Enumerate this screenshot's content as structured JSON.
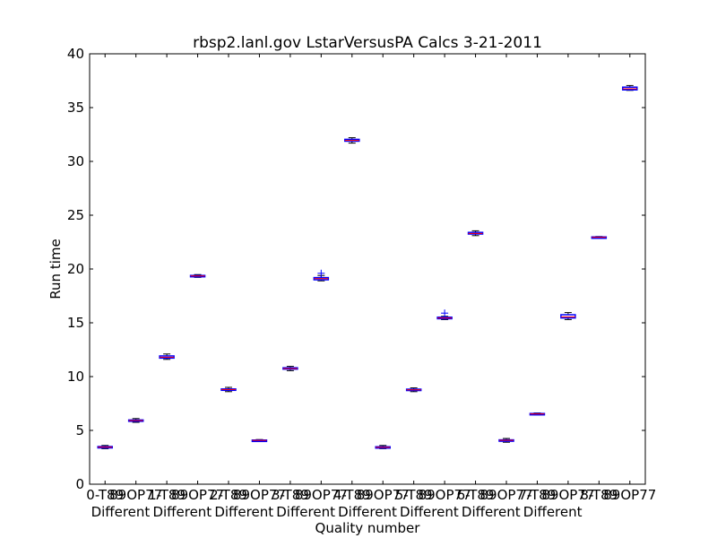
{
  "chart_data": {
    "type": "box",
    "title": "rbsp2.lanl.gov LstarVersusPA Calcs 3-21-2011",
    "xlabel": "Quality number",
    "ylabel": "Run time",
    "ylim": [
      0,
      40
    ],
    "yticks": [
      0,
      5,
      10,
      15,
      20,
      25,
      30,
      35,
      40
    ],
    "grid": false,
    "legend": "none",
    "box_color": "#0000ff",
    "median_color": "#ff0000",
    "whisker_color": "#000000",
    "flier_color": "#0000ff",
    "tick_labels": [
      "0-T89",
      "89OP77",
      "1-T89",
      "89OP77",
      "2-T89",
      "89OP77",
      "3-T89",
      "89OP77",
      "4-T89",
      "89OP77",
      "5-T89",
      "89OP77",
      "6-T89",
      "89OP77",
      "7-T89",
      "89OP77",
      "8-T89",
      "89OP77"
    ],
    "group_labels": [
      "Different",
      "Different",
      "Different",
      "Different",
      "Different",
      "Different",
      "Different",
      "Different"
    ],
    "boxes": [
      {
        "q1": 3.42,
        "median": 3.45,
        "q3": 3.5,
        "wlo": 3.3,
        "whi": 3.6,
        "fliers": []
      },
      {
        "q1": 5.88,
        "median": 5.92,
        "q3": 5.97,
        "wlo": 5.75,
        "whi": 6.1,
        "fliers": []
      },
      {
        "q1": 11.72,
        "median": 11.8,
        "q3": 11.92,
        "wlo": 11.6,
        "whi": 12.1,
        "fliers": []
      },
      {
        "q1": 19.3,
        "median": 19.35,
        "q3": 19.4,
        "wlo": 19.22,
        "whi": 19.48,
        "fliers": []
      },
      {
        "q1": 8.75,
        "median": 8.8,
        "q3": 8.85,
        "wlo": 8.6,
        "whi": 9.0,
        "fliers": []
      },
      {
        "q1": 4.05,
        "median": 4.07,
        "q3": 4.1,
        "wlo": 4.0,
        "whi": 4.15,
        "fliers": []
      },
      {
        "q1": 10.7,
        "median": 10.75,
        "q3": 10.82,
        "wlo": 10.55,
        "whi": 10.95,
        "fliers": []
      },
      {
        "q1": 19.0,
        "median": 19.1,
        "q3": 19.2,
        "wlo": 18.9,
        "whi": 19.4,
        "fliers": [
          19.6
        ]
      },
      {
        "q1": 31.88,
        "median": 31.95,
        "q3": 32.05,
        "wlo": 31.7,
        "whi": 32.2,
        "fliers": []
      },
      {
        "q1": 3.4,
        "median": 3.43,
        "q3": 3.48,
        "wlo": 3.3,
        "whi": 3.6,
        "fliers": []
      },
      {
        "q1": 8.72,
        "median": 8.77,
        "q3": 8.83,
        "wlo": 8.6,
        "whi": 8.95,
        "fliers": []
      },
      {
        "q1": 15.38,
        "median": 15.45,
        "q3": 15.52,
        "wlo": 15.3,
        "whi": 15.6,
        "fliers": [
          15.9
        ]
      },
      {
        "q1": 23.25,
        "median": 23.3,
        "q3": 23.4,
        "wlo": 23.1,
        "whi": 23.55,
        "fliers": []
      },
      {
        "q1": 4.05,
        "median": 4.08,
        "q3": 4.12,
        "wlo": 3.9,
        "whi": 4.25,
        "fliers": []
      },
      {
        "q1": 6.5,
        "median": 6.53,
        "q3": 6.57,
        "wlo": 6.45,
        "whi": 6.62,
        "fliers": []
      },
      {
        "q1": 15.45,
        "median": 15.55,
        "q3": 15.75,
        "wlo": 15.3,
        "whi": 15.95,
        "fliers": []
      },
      {
        "q1": 22.92,
        "median": 22.95,
        "q3": 22.98,
        "wlo": 22.88,
        "whi": 23.02,
        "fliers": []
      },
      {
        "q1": 36.65,
        "median": 36.75,
        "q3": 36.9,
        "wlo": 36.6,
        "whi": 37.05,
        "fliers": []
      }
    ]
  }
}
